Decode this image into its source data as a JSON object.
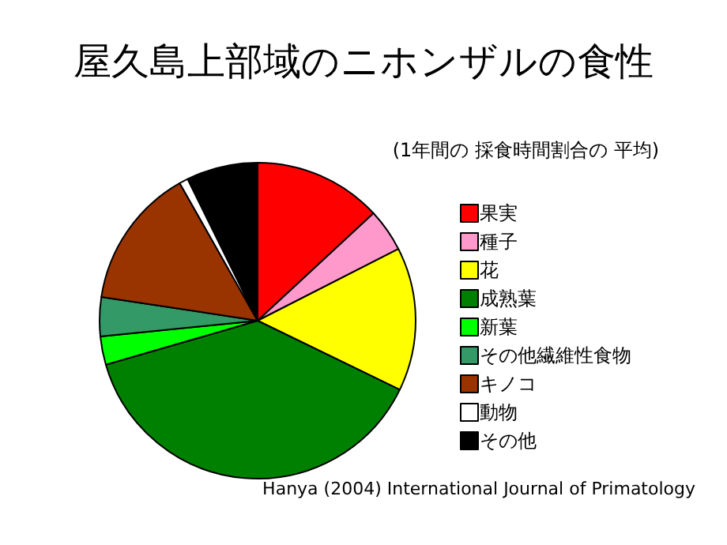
{
  "chart_data": {
    "type": "pie",
    "title": "屋久島上部域のニホンザルの食性",
    "subtitle": "(1年間の 採食時間割合の 平均)",
    "categories": [
      "果実",
      "種子",
      "花",
      "成熟葉",
      "新葉",
      "その他繊維性食物",
      "キノコ",
      "動物",
      "その他"
    ],
    "values": [
      13.1,
      4.4,
      14.7,
      38.3,
      2.9,
      4.0,
      14.4,
      0.9,
      7.3
    ],
    "colors": [
      "#ff0000",
      "#ff99cc",
      "#ffff00",
      "#008000",
      "#00ff00",
      "#339966",
      "#993300",
      "#ffffff",
      "#000000"
    ],
    "legend": "right",
    "annotations": [
      "Hanya (2004) International Journal of Primatology"
    ]
  }
}
